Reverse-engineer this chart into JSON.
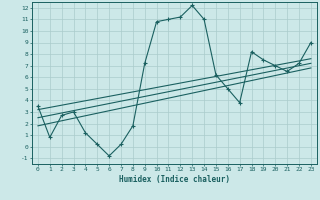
{
  "bg_color": "#cce8e8",
  "grid_color": "#aacccc",
  "line_color": "#1a6060",
  "xlabel": "Humidex (Indice chaleur)",
  "xlim": [
    -0.5,
    23.5
  ],
  "ylim": [
    -1.5,
    12.5
  ],
  "xticks": [
    0,
    1,
    2,
    3,
    4,
    5,
    6,
    7,
    8,
    9,
    10,
    11,
    12,
    13,
    14,
    15,
    16,
    17,
    18,
    19,
    20,
    21,
    22,
    23
  ],
  "yticks": [
    -1,
    0,
    1,
    2,
    3,
    4,
    5,
    6,
    7,
    8,
    9,
    10,
    11,
    12
  ],
  "curve1_x": [
    0,
    1,
    2,
    3,
    4,
    5,
    6,
    7,
    8,
    9,
    10,
    11,
    12,
    13,
    14,
    15,
    16,
    17,
    18,
    19,
    20,
    21,
    22,
    23
  ],
  "curve1_y": [
    3.5,
    0.8,
    2.7,
    3.0,
    1.2,
    0.2,
    -0.8,
    0.2,
    1.8,
    7.2,
    10.8,
    11.0,
    11.2,
    12.2,
    11.0,
    6.2,
    5.0,
    3.8,
    8.2,
    7.5,
    7.0,
    6.5,
    7.2,
    9.0
  ],
  "line2_x": [
    0,
    23
  ],
  "line2_y": [
    2.5,
    7.2
  ],
  "line3_x": [
    0,
    23
  ],
  "line3_y": [
    3.2,
    7.6
  ],
  "line4_x": [
    0,
    23
  ],
  "line4_y": [
    1.8,
    6.8
  ]
}
